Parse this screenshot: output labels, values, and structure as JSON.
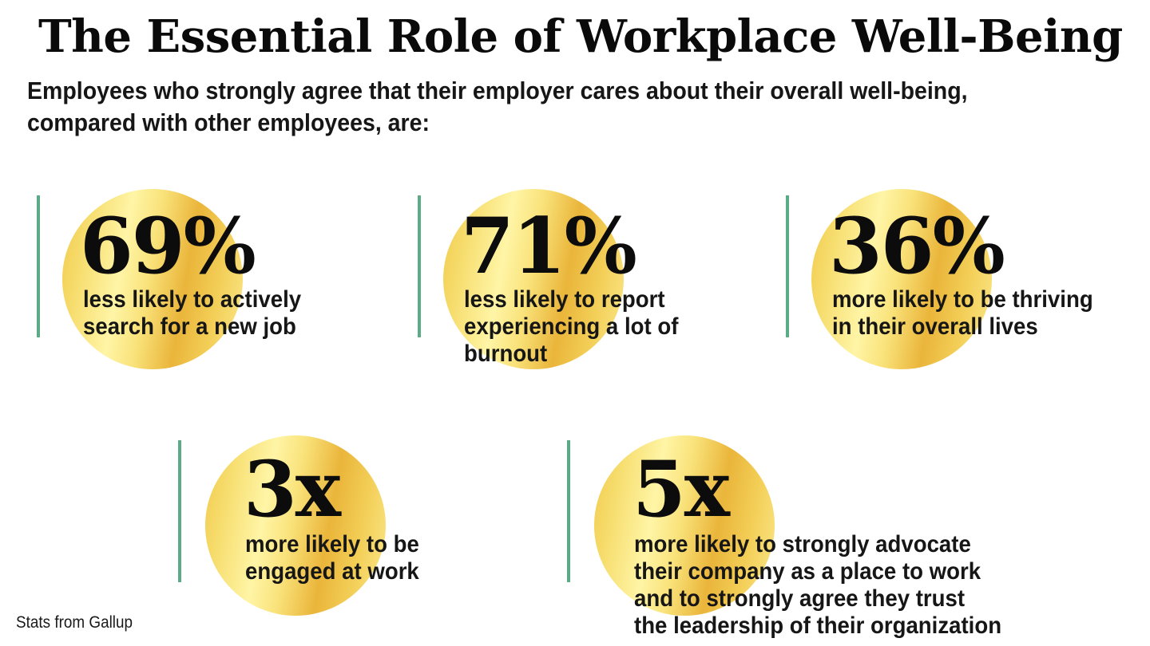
{
  "title": "The Essential Role of Workplace Well-Being",
  "subtitle_lines": [
    "Employees who strongly agree that their employer cares about their overall well-being,",
    "compared with other employees, are:"
  ],
  "stats": [
    {
      "value": "69%",
      "lines": [
        "less likely to actively",
        "search for a new job"
      ]
    },
    {
      "value": "71%",
      "lines": [
        "less likely to report",
        "experiencing a lot of",
        "burnout"
      ]
    },
    {
      "value": "36%",
      "lines": [
        "more likely to be thriving",
        "in their overall lives"
      ]
    },
    {
      "value": "3x",
      "lines": [
        "more likely to be",
        "engaged at work"
      ]
    },
    {
      "value": "5x",
      "lines": [
        "more likely to strongly advocate",
        "their company as a place to work",
        "and to strongly agree they trust",
        "the leadership of their organization"
      ]
    }
  ],
  "source": "Stats from Gallup",
  "colors": {
    "accent_bar": "#5aab86",
    "gold": "#f1c84a",
    "text": "#111111"
  }
}
